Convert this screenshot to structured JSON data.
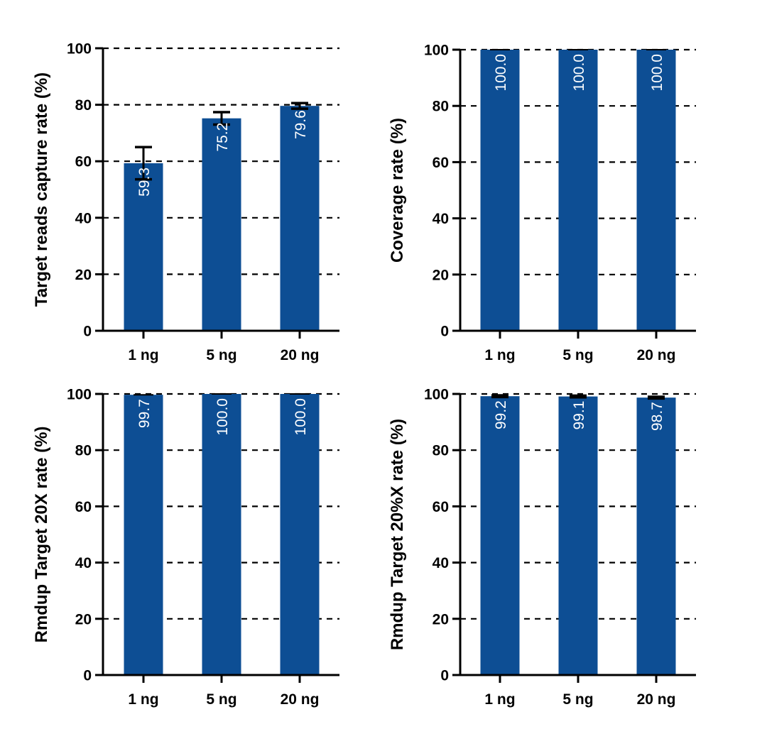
{
  "chart_data": [
    {
      "type": "bar",
      "categories": [
        "1 ng",
        "5 ng",
        "20 ng"
      ],
      "values": [
        59.3,
        75.2,
        79.6
      ],
      "error": [
        5.7,
        2.2,
        1.0
      ],
      "value_labels": [
        "59.3",
        "75.2",
        "79.6"
      ],
      "ylabel": "Target reads capture rate (%)",
      "ylim": [
        0,
        100
      ],
      "yticks": [
        "0",
        "20",
        "40",
        "60",
        "80",
        "100"
      ],
      "grid": "dashed horizontal",
      "color": "#0d4e94"
    },
    {
      "type": "bar",
      "categories": [
        "1 ng",
        "5 ng",
        "20 ng"
      ],
      "values": [
        100.0,
        100.0,
        100.0
      ],
      "error": [
        0,
        0,
        0
      ],
      "value_labels": [
        "100.0",
        "100.0",
        "100.0"
      ],
      "ylabel": "Coverage rate (%)",
      "ylim": [
        0,
        100
      ],
      "yticks": [
        "0",
        "20",
        "40",
        "60",
        "80",
        "100"
      ],
      "grid": "dashed horizontal",
      "color": "#0d4e94"
    },
    {
      "type": "bar",
      "categories": [
        "1 ng",
        "5 ng",
        "20 ng"
      ],
      "values": [
        99.7,
        100.0,
        100.0
      ],
      "error": [
        0,
        0,
        0
      ],
      "value_labels": [
        "99.7",
        "100.0",
        "100.0"
      ],
      "ylabel": "Rmdup Target 20X rate (%)",
      "ylim": [
        0,
        100
      ],
      "yticks": [
        "0",
        "20",
        "40",
        "60",
        "80",
        "100"
      ],
      "grid": "dashed horizontal",
      "color": "#0d4e94"
    },
    {
      "type": "bar",
      "categories": [
        "1 ng",
        "5 ng",
        "20 ng"
      ],
      "values": [
        99.2,
        99.1,
        98.7
      ],
      "error": [
        0.3,
        0.3,
        0.3
      ],
      "value_labels": [
        "99.2",
        "99.1",
        "98.7"
      ],
      "ylabel": "Rmdup Target 20%X rate (%)",
      "ylim": [
        0,
        100
      ],
      "yticks": [
        "0",
        "20",
        "40",
        "60",
        "80",
        "100"
      ],
      "grid": "dashed horizontal",
      "color": "#0d4e94"
    }
  ]
}
